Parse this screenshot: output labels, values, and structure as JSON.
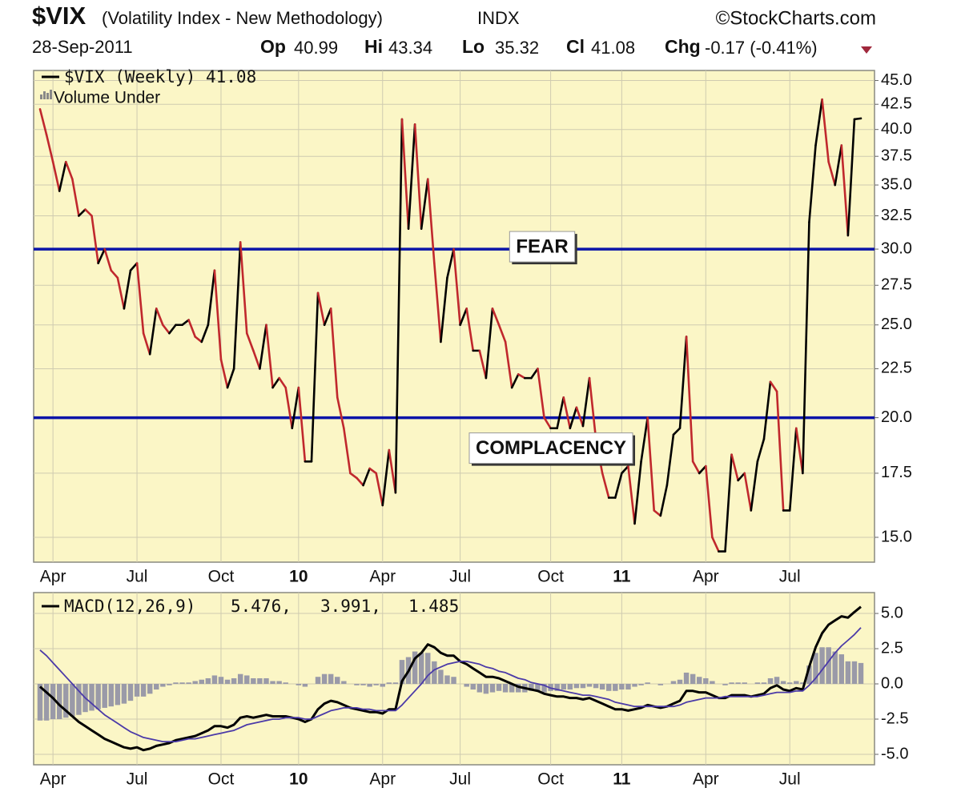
{
  "header": {
    "symbol": "$VIX",
    "name": "(Volatility Index - New Methodology)",
    "exchange": "INDX",
    "source": "©StockCharts.com",
    "date": "28-Sep-2011",
    "quote": [
      {
        "label": "Op",
        "value": 40.99
      },
      {
        "label": "Hi",
        "value": 43.34
      },
      {
        "label": "Lo",
        "value": 35.32
      },
      {
        "label": "Cl",
        "value": 41.08
      },
      {
        "label": "Chg",
        "value": "-0.17 (-0.41%)"
      }
    ]
  },
  "chart_data": [
    {
      "type": "line",
      "log_scale": true,
      "grid": true,
      "background": "#fbf6c6",
      "categories": [
        null,
        null,
        "Apr",
        null,
        null,
        null,
        null,
        null,
        null,
        null,
        null,
        null,
        null,
        null,
        null,
        "Jul",
        null,
        null,
        null,
        null,
        null,
        null,
        null,
        null,
        null,
        null,
        null,
        null,
        "Oct",
        null,
        null,
        null,
        null,
        null,
        null,
        null,
        null,
        null,
        null,
        null,
        "10",
        null,
        null,
        null,
        null,
        null,
        null,
        null,
        null,
        null,
        null,
        null,
        null,
        "Apr",
        null,
        null,
        null,
        null,
        null,
        null,
        null,
        null,
        null,
        null,
        null,
        "Jul",
        null,
        null,
        null,
        null,
        null,
        null,
        null,
        null,
        null,
        null,
        null,
        null,
        null,
        "Oct",
        null,
        null,
        null,
        null,
        null,
        null,
        null,
        null,
        null,
        null,
        "11",
        null,
        null,
        null,
        null,
        null,
        null,
        null,
        null,
        null,
        null,
        null,
        null,
        "Apr",
        null,
        null,
        null,
        null,
        null,
        null,
        null,
        null,
        null,
        null,
        null,
        null,
        "Jul",
        null,
        null,
        null,
        null,
        null,
        null,
        null,
        null,
        null,
        null,
        null
      ],
      "series": [
        {
          "name": "$VIX (Weekly) 41.08",
          "up_color": "#000000",
          "down_color": "#c0282d",
          "values": [
            42,
            39.5,
            37,
            34.5,
            37,
            35.5,
            32.5,
            33,
            32.5,
            29,
            30,
            28.5,
            28,
            26,
            28.5,
            29,
            24.5,
            23.3,
            26,
            25,
            24.5,
            25,
            25,
            25.3,
            24.3,
            24,
            25,
            28.5,
            23,
            21.5,
            22.5,
            30.5,
            24.5,
            23.5,
            22.5,
            25,
            21.5,
            22,
            21.5,
            19.5,
            21.5,
            18,
            18,
            27,
            25,
            26,
            21,
            19.5,
            17.5,
            17.3,
            17,
            17.7,
            17.5,
            16.2,
            18.5,
            16.7,
            41,
            31.5,
            40.5,
            31.5,
            35.5,
            29,
            24,
            28,
            30,
            25,
            26,
            23.5,
            23.5,
            22,
            26,
            25,
            24,
            21.5,
            22.2,
            22,
            22,
            22.5,
            20,
            19.5,
            19.5,
            21,
            19.5,
            20.5,
            19.6,
            22,
            19,
            17.5,
            16.5,
            16.5,
            17.5,
            17.8,
            15.5,
            18,
            20,
            16,
            15.8,
            17,
            19.2,
            19.5,
            24.3,
            18,
            17.5,
            17.8,
            15,
            14.5,
            14.5,
            18.3,
            17.2,
            17.5,
            16,
            18,
            19,
            21.8,
            21.3,
            16,
            16,
            19.5,
            17.5,
            32,
            38.5,
            43,
            37,
            35,
            38.5,
            31,
            41,
            41.08
          ]
        }
      ],
      "legend_extra": "Volume Under",
      "ylim": [
        14.13,
        46.1
      ],
      "yticks": [
        {
          "value": 15,
          "label": "15.0"
        },
        {
          "value": 17.5,
          "label": "17.5"
        },
        {
          "value": 20,
          "label": "20.0"
        },
        {
          "value": 22.5,
          "label": "22.5"
        },
        {
          "value": 25,
          "label": "25.0"
        },
        {
          "value": 27.5,
          "label": "27.5"
        },
        {
          "value": 30,
          "label": "30.0"
        },
        {
          "value": 32.5,
          "label": "32.5"
        },
        {
          "value": 35,
          "label": "35.0"
        },
        {
          "value": 37.5,
          "label": "37.5"
        },
        {
          "value": 40,
          "label": "40.0"
        },
        {
          "value": 42.5,
          "label": "42.5"
        },
        {
          "value": 45,
          "label": "45.0"
        }
      ],
      "reference_lines": [
        {
          "value": 30,
          "label": "FEAR",
          "color": "#0a14a8"
        },
        {
          "value": 20,
          "label": "COMPLACENCY",
          "color": "#0a14a8"
        }
      ]
    },
    {
      "type": "macd",
      "grid": true,
      "background": "#fbf6c6",
      "legend": "MACD(12,26,9)",
      "series": [
        {
          "name": "5.476,",
          "color": "#000000",
          "kind": "line",
          "values": [
            -0.2,
            -0.6,
            -1.0,
            -1.5,
            -1.9,
            -2.3,
            -2.7,
            -3.0,
            -3.3,
            -3.6,
            -3.9,
            -4.1,
            -4.3,
            -4.5,
            -4.6,
            -4.5,
            -4.7,
            -4.6,
            -4.4,
            -4.3,
            -4.2,
            -4.0,
            -3.9,
            -3.8,
            -3.7,
            -3.5,
            -3.3,
            -3.0,
            -3.0,
            -3.1,
            -2.9,
            -2.4,
            -2.3,
            -2.4,
            -2.3,
            -2.2,
            -2.3,
            -2.3,
            -2.3,
            -2.4,
            -2.5,
            -2.7,
            -2.5,
            -1.8,
            -1.4,
            -1.2,
            -1.3,
            -1.5,
            -1.7,
            -1.8,
            -1.9,
            -2.0,
            -2.0,
            -2.1,
            -1.8,
            -1.8,
            0.2,
            0.9,
            1.8,
            2.2,
            2.8,
            2.6,
            2.2,
            2.0,
            2.0,
            1.6,
            1.4,
            1.1,
            0.8,
            0.5,
            0.5,
            0.4,
            0.2,
            0.0,
            -0.2,
            -0.3,
            -0.4,
            -0.5,
            -0.7,
            -0.8,
            -0.9,
            -0.9,
            -1.0,
            -1.0,
            -1.1,
            -1.0,
            -1.2,
            -1.4,
            -1.6,
            -1.8,
            -1.8,
            -1.9,
            -1.8,
            -1.7,
            -1.5,
            -1.6,
            -1.7,
            -1.6,
            -1.4,
            -1.2,
            -0.5,
            -0.5,
            -0.6,
            -0.6,
            -0.8,
            -1.0,
            -1.0,
            -0.8,
            -0.8,
            -0.8,
            -0.9,
            -0.8,
            -0.7,
            -0.3,
            -0.1,
            -0.4,
            -0.5,
            -0.3,
            -0.4,
            1.2,
            2.6,
            3.6,
            4.2,
            4.5,
            4.8,
            4.7,
            5.1,
            5.476
          ]
        },
        {
          "name": "3.991,",
          "color": "#4b3aa8",
          "kind": "line",
          "values": [
            2.4,
            2.0,
            1.5,
            1.0,
            0.5,
            0.0,
            -0.5,
            -1.0,
            -1.4,
            -1.8,
            -2.2,
            -2.5,
            -2.8,
            -3.1,
            -3.4,
            -3.6,
            -3.8,
            -3.9,
            -4.0,
            -4.1,
            -4.1,
            -4.1,
            -4.0,
            -3.9,
            -3.9,
            -3.8,
            -3.7,
            -3.6,
            -3.5,
            -3.4,
            -3.3,
            -3.1,
            -2.9,
            -2.8,
            -2.7,
            -2.6,
            -2.5,
            -2.5,
            -2.4,
            -2.4,
            -2.4,
            -2.5,
            -2.5,
            -2.3,
            -2.1,
            -1.9,
            -1.8,
            -1.7,
            -1.7,
            -1.7,
            -1.8,
            -1.8,
            -1.9,
            -1.9,
            -1.9,
            -1.9,
            -1.5,
            -1.0,
            -0.5,
            0.0,
            0.6,
            1.0,
            1.2,
            1.4,
            1.5,
            1.6,
            1.6,
            1.5,
            1.4,
            1.2,
            1.1,
            0.9,
            0.8,
            0.6,
            0.4,
            0.3,
            0.1,
            0.0,
            -0.1,
            -0.3,
            -0.4,
            -0.5,
            -0.6,
            -0.7,
            -0.8,
            -0.8,
            -0.9,
            -1.0,
            -1.1,
            -1.3,
            -1.4,
            -1.5,
            -1.6,
            -1.6,
            -1.6,
            -1.6,
            -1.6,
            -1.6,
            -1.6,
            -1.5,
            -1.3,
            -1.2,
            -1.1,
            -1.0,
            -1.0,
            -1.0,
            -0.9,
            -0.9,
            -0.9,
            -0.9,
            -0.9,
            -0.9,
            -0.8,
            -0.7,
            -0.6,
            -0.6,
            -0.6,
            -0.5,
            -0.5,
            -0.1,
            0.4,
            1.0,
            1.6,
            2.2,
            2.7,
            3.1,
            3.5,
            3.991
          ]
        },
        {
          "name": "1.485",
          "color": "#9a9aa8",
          "kind": "histogram",
          "values": [
            -2.6,
            -2.6,
            -2.5,
            -2.5,
            -2.4,
            -2.3,
            -2.2,
            -2.0,
            -1.9,
            -1.8,
            -1.7,
            -1.6,
            -1.5,
            -1.4,
            -1.2,
            -0.9,
            -0.9,
            -0.7,
            -0.4,
            -0.2,
            -0.1,
            0.1,
            0.1,
            0.1,
            0.2,
            0.3,
            0.4,
            0.6,
            0.5,
            0.3,
            0.4,
            0.7,
            0.6,
            0.4,
            0.4,
            0.4,
            0.2,
            0.2,
            0.1,
            0.0,
            -0.1,
            -0.2,
            0.0,
            0.5,
            0.7,
            0.7,
            0.5,
            0.2,
            0.0,
            -0.1,
            -0.1,
            -0.2,
            -0.1,
            -0.2,
            0.1,
            0.1,
            1.7,
            1.9,
            2.3,
            2.2,
            2.2,
            1.6,
            1.0,
            0.6,
            0.5,
            0.0,
            -0.2,
            -0.4,
            -0.6,
            -0.7,
            -0.6,
            -0.5,
            -0.6,
            -0.6,
            -0.6,
            -0.6,
            -0.5,
            -0.5,
            -0.6,
            -0.5,
            -0.5,
            -0.4,
            -0.4,
            -0.3,
            -0.3,
            -0.2,
            -0.3,
            -0.4,
            -0.5,
            -0.5,
            -0.4,
            -0.4,
            -0.2,
            -0.1,
            0.1,
            0.0,
            -0.1,
            0.0,
            0.2,
            0.3,
            0.8,
            0.7,
            0.5,
            0.4,
            0.2,
            0.0,
            -0.1,
            0.1,
            0.1,
            0.1,
            0.0,
            0.1,
            0.1,
            0.4,
            0.5,
            0.2,
            0.1,
            0.2,
            0.1,
            1.3,
            2.2,
            2.6,
            2.6,
            2.3,
            2.1,
            1.6,
            1.6,
            1.485
          ]
        }
      ],
      "ylim": [
        -5.74,
        6.48
      ],
      "yticks": [
        {
          "value": 5,
          "label": "5.0"
        },
        {
          "value": 2.5,
          "label": "2.5"
        },
        {
          "value": 0,
          "label": "0.0"
        },
        {
          "value": -2.5,
          "label": "-2.5"
        },
        {
          "value": -5,
          "label": "-5.0"
        }
      ]
    }
  ]
}
